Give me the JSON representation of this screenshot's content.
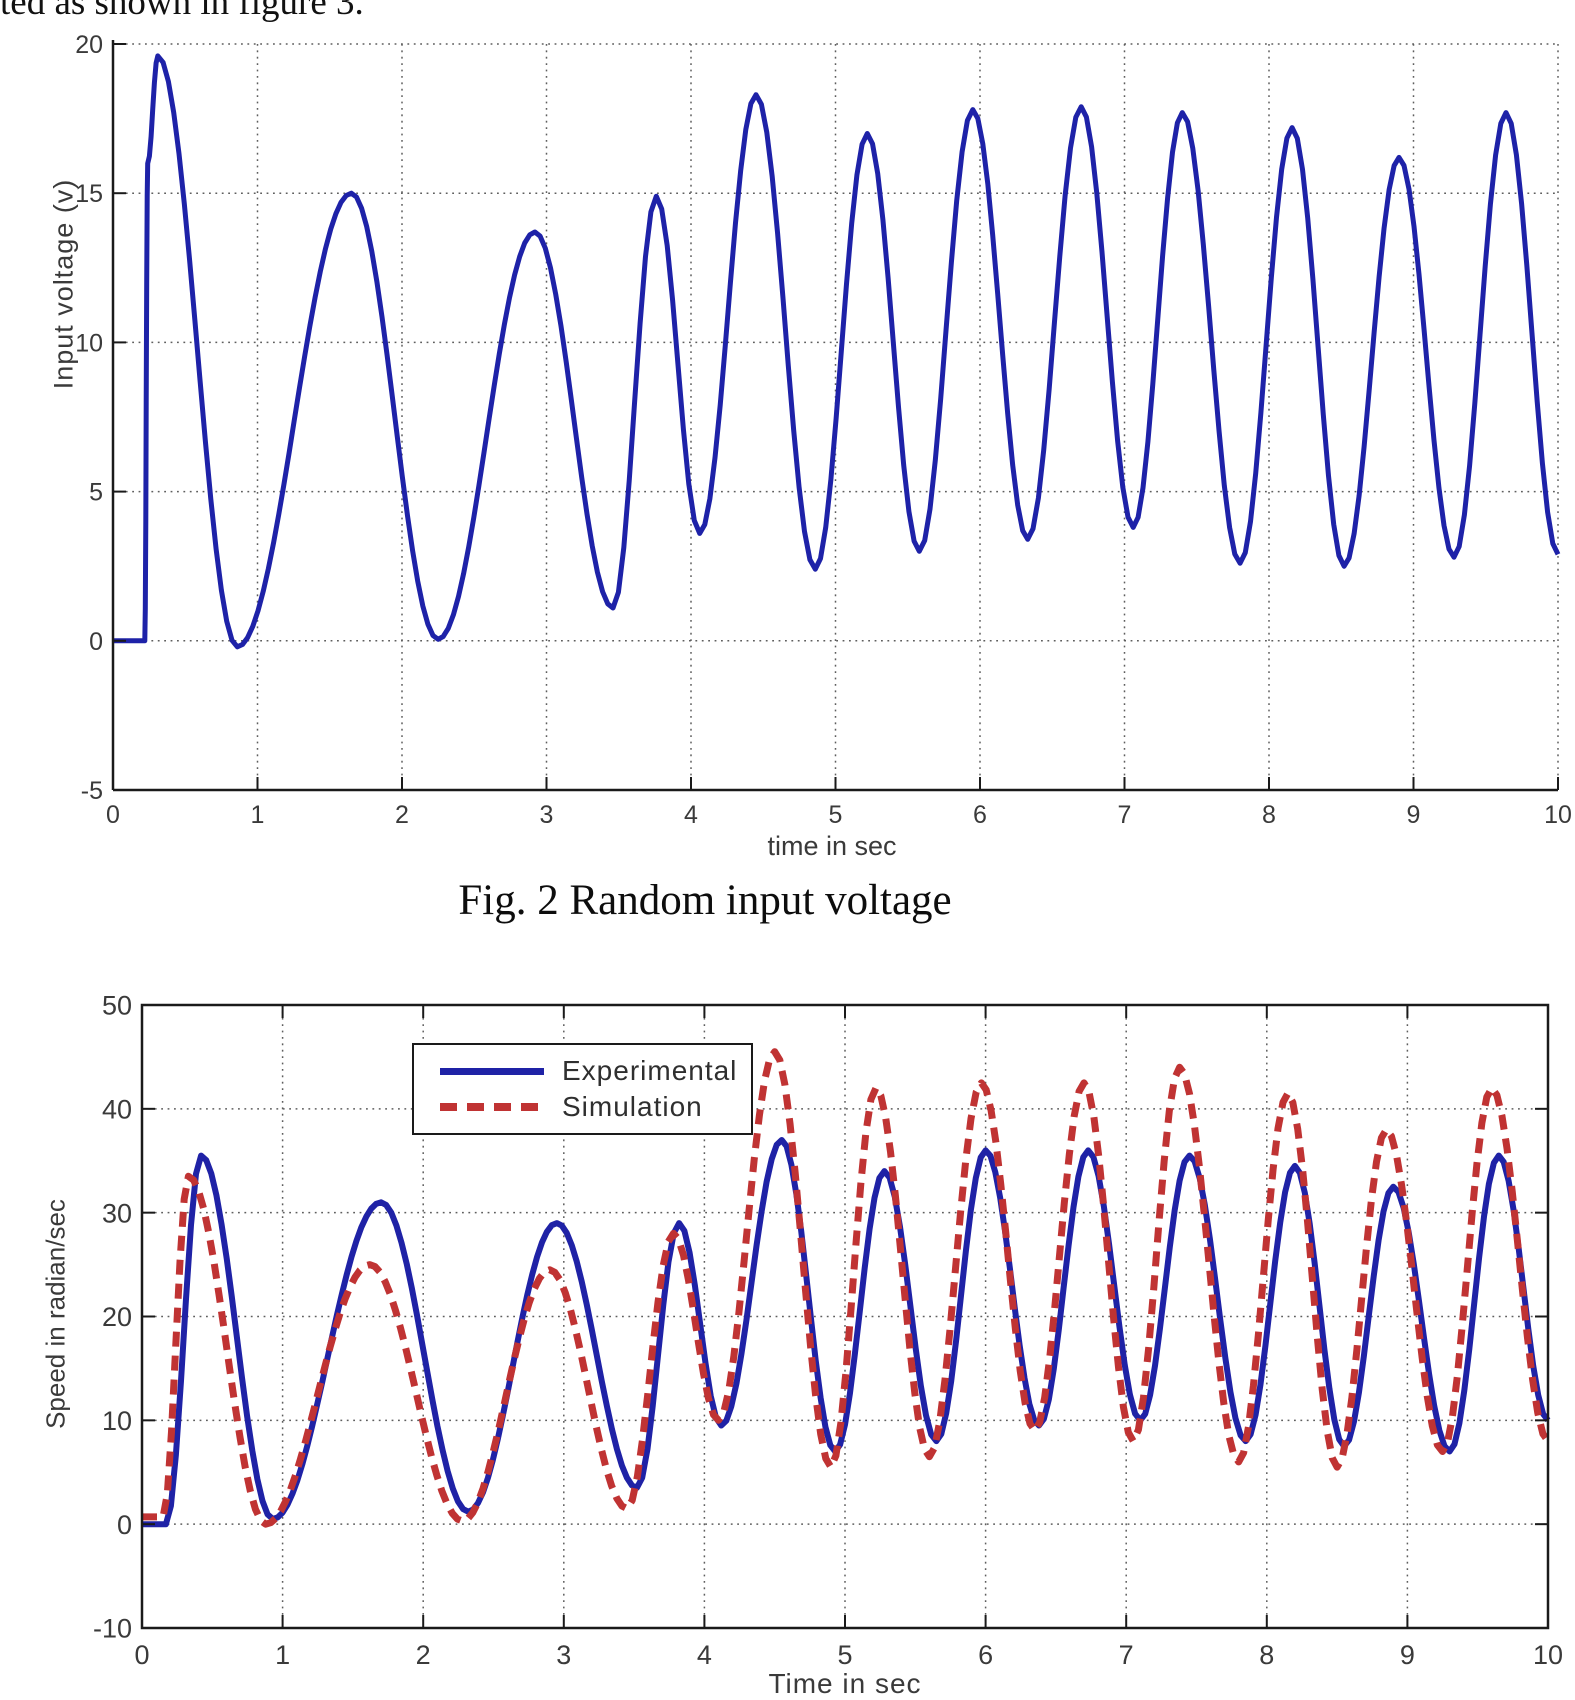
{
  "page": {
    "top_partial_text": "ted as shown in figure 3.",
    "background_color": "#ffffff"
  },
  "figure_caption": "Fig. 2 Random input voltage",
  "legend": {
    "position": "upper-left-inside-plot",
    "items": [
      {
        "label": "Experimental",
        "color": "#1f22a6",
        "line_style": "solid"
      },
      {
        "label": "Simulation",
        "color": "#c03333",
        "line_style": "dashed"
      }
    ]
  },
  "chart_data": [
    {
      "type": "line",
      "title": "",
      "xlabel": "time in sec",
      "ylabel": "Input voltage (v)",
      "xlim": [
        0,
        10
      ],
      "ylim": [
        -5,
        20
      ],
      "xticks": [
        0,
        1,
        2,
        3,
        4,
        5,
        6,
        7,
        8,
        9,
        10
      ],
      "yticks": [
        20,
        15,
        10,
        5,
        0,
        -5
      ],
      "grid": true,
      "grid_style": "dotted",
      "series": [
        {
          "name": "Random input voltage",
          "color": "#1e22a8",
          "width": 5,
          "style": "solid",
          "points": [
            [
              0,
              0
            ],
            [
              0.22,
              0
            ],
            [
              0.24,
              16
            ],
            [
              0.31,
              19.6
            ],
            [
              0.86,
              -0.2
            ],
            [
              1.65,
              15.0
            ],
            [
              2.25,
              0.05
            ],
            [
              2.92,
              13.7
            ],
            [
              3.46,
              1.1
            ],
            [
              3.76,
              14.9
            ],
            [
              4.06,
              3.6
            ],
            [
              4.45,
              18.3
            ],
            [
              4.86,
              2.4
            ],
            [
              5.22,
              17.0
            ],
            [
              5.58,
              3.0
            ],
            [
              5.95,
              17.8
            ],
            [
              6.33,
              3.4
            ],
            [
              6.7,
              17.9
            ],
            [
              7.06,
              3.8
            ],
            [
              7.4,
              17.7
            ],
            [
              7.8,
              2.6
            ],
            [
              8.16,
              17.2
            ],
            [
              8.52,
              2.5
            ],
            [
              8.9,
              16.2
            ],
            [
              9.28,
              2.8
            ],
            [
              9.64,
              17.7
            ],
            [
              10,
              2.9
            ]
          ]
        }
      ]
    },
    {
      "type": "line",
      "title": "",
      "xlabel": "Time in sec",
      "ylabel": "Speed in radian/sec",
      "xlim": [
        0,
        10
      ],
      "ylim": [
        -10,
        50
      ],
      "xticks": [
        0,
        1,
        2,
        3,
        4,
        5,
        6,
        7,
        8,
        9,
        10
      ],
      "yticks": [
        50,
        40,
        30,
        20,
        10,
        0,
        -10
      ],
      "grid": true,
      "grid_style": "dotted",
      "series": [
        {
          "name": "Experimental",
          "color": "#1f22a6",
          "width": 6,
          "style": "solid",
          "points": [
            [
              0,
              0
            ],
            [
              0.17,
              0
            ],
            [
              0.42,
              35.5
            ],
            [
              0.93,
              0.5
            ],
            [
              1.7,
              31
            ],
            [
              2.32,
              1.2
            ],
            [
              2.95,
              29
            ],
            [
              3.52,
              3.5
            ],
            [
              3.82,
              29
            ],
            [
              4.12,
              9.5
            ],
            [
              4.55,
              37
            ],
            [
              4.93,
              7
            ],
            [
              5.28,
              34
            ],
            [
              5.65,
              8
            ],
            [
              6,
              36
            ],
            [
              6.38,
              9.5
            ],
            [
              6.73,
              36
            ],
            [
              7.1,
              10
            ],
            [
              7.45,
              35.5
            ],
            [
              7.85,
              8
            ],
            [
              8.2,
              34.5
            ],
            [
              8.55,
              7.5
            ],
            [
              8.9,
              32.5
            ],
            [
              9.3,
              7
            ],
            [
              9.65,
              35.5
            ],
            [
              10,
              10
            ]
          ]
        },
        {
          "name": "Simulation",
          "color": "#c03333",
          "width": 7,
          "style": "dashed",
          "dash": "15 9",
          "points": [
            [
              0,
              0.7
            ],
            [
              0.15,
              0.7
            ],
            [
              0.33,
              33.5
            ],
            [
              0.88,
              0
            ],
            [
              1.62,
              25
            ],
            [
              2.28,
              0.3
            ],
            [
              2.9,
              24.5
            ],
            [
              3.45,
              1.5
            ],
            [
              3.78,
              28
            ],
            [
              4.1,
              10
            ],
            [
              4.5,
              45.5
            ],
            [
              4.9,
              5.5
            ],
            [
              5.22,
              42
            ],
            [
              5.6,
              6.5
            ],
            [
              5.97,
              42.5
            ],
            [
              6.35,
              9
            ],
            [
              6.7,
              42.5
            ],
            [
              7.05,
              8
            ],
            [
              7.38,
              44
            ],
            [
              7.8,
              6
            ],
            [
              8.15,
              41.5
            ],
            [
              8.5,
              5.5
            ],
            [
              8.85,
              38
            ],
            [
              9.25,
              7
            ],
            [
              9.6,
              42
            ],
            [
              10,
              8
            ]
          ]
        }
      ]
    }
  ]
}
